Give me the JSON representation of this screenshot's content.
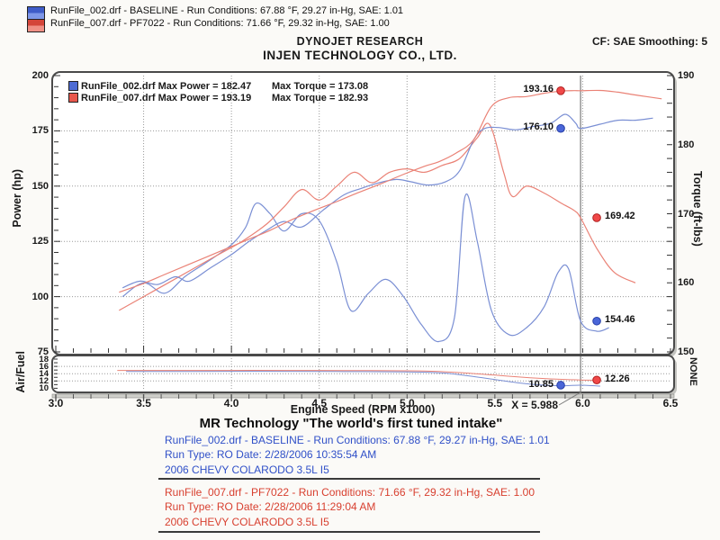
{
  "page_legend": {
    "runs": [
      {
        "swatch": "blue-swatch",
        "label": "RunFile_002.drf - BASELINE  -  Run Conditions: 67.88 °F, 29.27 in-Hg, SAE: 1.01"
      },
      {
        "swatch": "red-swatch",
        "label": "RunFile_007.drf - PF7022  -  Run Conditions: 71.66 °F, 29.32 in-Hg, SAE: 1.00"
      }
    ]
  },
  "header": {
    "brand": "DYNOJET RESEARCH",
    "company": "INJEN TECHNOLOGY CO., LTD.",
    "cf": "CF: SAE  Smoothing: 5"
  },
  "chart_data": {
    "type": "line",
    "xlabel": "Engine Speed (RPM x1000)",
    "x_range": [
      3.0,
      6.5
    ],
    "x_ticks": [
      "3.0",
      "3.5",
      "4.0",
      "4.5",
      "5.0",
      "5.5",
      "6.0",
      "6.5"
    ],
    "cursor": {
      "x": 5.988,
      "label": "X = 5.988"
    },
    "colors": {
      "blue_line": "#7a8fd4",
      "red_line": "#ea8276",
      "blue_dot": "#4a66d8",
      "red_dot": "#f04848",
      "grid": "#9a9a9a"
    },
    "main_chart": {
      "left_axis": {
        "label": "Power (hp)",
        "range": [
          75,
          200
        ],
        "ticks": [
          200,
          175,
          150,
          125,
          100,
          75
        ],
        "grid_at": [
          175,
          150,
          125,
          100
        ]
      },
      "right_axis": {
        "label": "Torque (ft-lbs)",
        "range": [
          150,
          190
        ],
        "ticks": [
          190,
          180,
          170,
          160,
          150
        ]
      },
      "legend": [
        {
          "swatch": "blue",
          "left": "RunFile_002.drf Max Power = 182.47",
          "right": "Max Torque = 173.08"
        },
        {
          "swatch": "red",
          "left": "RunFile_007.drf Max Power = 193.19",
          "right": "Max Torque = 182.93"
        }
      ],
      "series": [
        {
          "name": "baseline-torque",
          "run": "RunFile_002.drf",
          "axis": "torque",
          "color": "blue",
          "points": [
            [
              3.38,
              158
            ],
            [
              3.5,
              160
            ],
            [
              3.62,
              158.5
            ],
            [
              3.74,
              161
            ],
            [
              3.86,
              163
            ],
            [
              4.0,
              165.5
            ],
            [
              4.08,
              168
            ],
            [
              4.14,
              171.5
            ],
            [
              4.22,
              170
            ],
            [
              4.3,
              167.5
            ],
            [
              4.4,
              170
            ],
            [
              4.5,
              169
            ],
            [
              4.6,
              163
            ],
            [
              4.68,
              156
            ],
            [
              4.78,
              158.5
            ],
            [
              4.88,
              160.5
            ],
            [
              4.98,
              158
            ],
            [
              5.08,
              154
            ],
            [
              5.18,
              151.5
            ],
            [
              5.27,
              155
            ],
            [
              5.33,
              172.5
            ],
            [
              5.4,
              166
            ],
            [
              5.48,
              156
            ],
            [
              5.58,
              152.5
            ],
            [
              5.68,
              153.5
            ],
            [
              5.78,
              156.5
            ],
            [
              5.86,
              161.5
            ],
            [
              5.92,
              162
            ],
            [
              5.988,
              154.46
            ],
            [
              6.08,
              153
            ],
            [
              6.15,
              153.5
            ]
          ]
        },
        {
          "name": "pf7022-torque",
          "run": "RunFile_007.drf",
          "axis": "torque",
          "color": "red",
          "points": [
            [
              3.36,
              156
            ],
            [
              3.5,
              158
            ],
            [
              3.64,
              160
            ],
            [
              3.78,
              162
            ],
            [
              3.92,
              164
            ],
            [
              4.06,
              166
            ],
            [
              4.2,
              168.5
            ],
            [
              4.3,
              171
            ],
            [
              4.4,
              173.5
            ],
            [
              4.5,
              172
            ],
            [
              4.6,
              174
            ],
            [
              4.7,
              176
            ],
            [
              4.8,
              174.5
            ],
            [
              4.9,
              176
            ],
            [
              5.0,
              176.5
            ],
            [
              5.1,
              176
            ],
            [
              5.2,
              177
            ],
            [
              5.3,
              178
            ],
            [
              5.4,
              181
            ],
            [
              5.47,
              182.9
            ],
            [
              5.55,
              176
            ],
            [
              5.6,
              172.5
            ],
            [
              5.68,
              174
            ],
            [
              5.78,
              173
            ],
            [
              5.88,
              171.5
            ],
            [
              5.95,
              170.5
            ],
            [
              5.988,
              169.42
            ],
            [
              6.08,
              165
            ],
            [
              6.18,
              161.5
            ],
            [
              6.3,
              160
            ]
          ]
        },
        {
          "name": "baseline-power",
          "run": "RunFile_002.drf",
          "axis": "power",
          "color": "blue",
          "points": [
            [
              3.38,
              104
            ],
            [
              3.48,
              107
            ],
            [
              3.58,
              105.5
            ],
            [
              3.68,
              109
            ],
            [
              3.76,
              107
            ],
            [
              3.88,
              113
            ],
            [
              4.0,
              119
            ],
            [
              4.1,
              125
            ],
            [
              4.2,
              130
            ],
            [
              4.3,
              134
            ],
            [
              4.4,
              131.5
            ],
            [
              4.52,
              139
            ],
            [
              4.64,
              146
            ],
            [
              4.74,
              149
            ],
            [
              4.84,
              151.5
            ],
            [
              4.94,
              153
            ],
            [
              5.02,
              152
            ],
            [
              5.12,
              150.5
            ],
            [
              5.22,
              152
            ],
            [
              5.3,
              157
            ],
            [
              5.38,
              171
            ],
            [
              5.44,
              176
            ],
            [
              5.52,
              176.5
            ],
            [
              5.62,
              175.5
            ],
            [
              5.72,
              177
            ],
            [
              5.82,
              178.5
            ],
            [
              5.9,
              182.5
            ],
            [
              5.96,
              178.5
            ],
            [
              5.988,
              176.1
            ],
            [
              6.1,
              178
            ],
            [
              6.2,
              179.8
            ],
            [
              6.3,
              179.8
            ],
            [
              6.4,
              180.8
            ]
          ]
        },
        {
          "name": "pf7022-power",
          "run": "RunFile_007.drf",
          "axis": "power",
          "color": "red",
          "points": [
            [
              3.36,
              102
            ],
            [
              3.5,
              106
            ],
            [
              3.62,
              110
            ],
            [
              3.74,
              114
            ],
            [
              3.86,
              118
            ],
            [
              3.98,
              122
            ],
            [
              4.1,
              126
            ],
            [
              4.22,
              130
            ],
            [
              4.35,
              135
            ],
            [
              4.47,
              139
            ],
            [
              4.6,
              143
            ],
            [
              4.72,
              147
            ],
            [
              4.85,
              151
            ],
            [
              4.97,
              155
            ],
            [
              5.1,
              159
            ],
            [
              5.18,
              161
            ],
            [
              5.28,
              165
            ],
            [
              5.38,
              171
            ],
            [
              5.48,
              186
            ],
            [
              5.58,
              190
            ],
            [
              5.68,
              190.5
            ],
            [
              5.78,
              192
            ],
            [
              5.88,
              193
            ],
            [
              5.95,
              193.2
            ],
            [
              5.988,
              193.16
            ],
            [
              6.1,
              193.3
            ],
            [
              6.2,
              192.5
            ],
            [
              6.32,
              191
            ],
            [
              6.45,
              189.5
            ]
          ]
        }
      ],
      "markers": [
        {
          "label": "193.16",
          "rpm": 5.875,
          "value": 193.16,
          "axis": "power",
          "color": "red",
          "side": "left"
        },
        {
          "label": "176.10",
          "rpm": 5.875,
          "value": 176.1,
          "axis": "power",
          "color": "blue",
          "side": "left"
        },
        {
          "label": "169.42",
          "rpm": 6.08,
          "value": 169.42,
          "axis": "torque",
          "color": "red",
          "side": "right"
        },
        {
          "label": "154.46",
          "rpm": 6.08,
          "value": 154.46,
          "axis": "torque",
          "color": "blue",
          "side": "right"
        }
      ]
    },
    "af_chart": {
      "left_axis": {
        "label": "Air/Fuel",
        "range": [
          10,
          18
        ],
        "ticks": [
          18,
          16,
          14,
          12,
          10
        ],
        "grid_at": [
          16,
          14,
          12
        ]
      },
      "right_axis_label": "NONE",
      "series": [
        {
          "name": "baseline-airfuel",
          "run": "RunFile_002.drf",
          "color": "blue",
          "points": [
            [
              3.4,
              14.6
            ],
            [
              3.8,
              14.6
            ],
            [
              4.2,
              14.65
            ],
            [
              4.6,
              14.6
            ],
            [
              5.0,
              14.5
            ],
            [
              5.2,
              14.2
            ],
            [
              5.35,
              13.4
            ],
            [
              5.5,
              12.4
            ],
            [
              5.65,
              11.4
            ],
            [
              5.8,
              10.8
            ],
            [
              5.9,
              10.7
            ],
            [
              5.988,
              10.85
            ],
            [
              6.1,
              10.6
            ]
          ]
        },
        {
          "name": "pf7022-airfuel",
          "run": "RunFile_007.drf",
          "color": "red",
          "points": [
            [
              3.35,
              14.9
            ],
            [
              3.8,
              14.9
            ],
            [
              4.3,
              14.9
            ],
            [
              4.8,
              14.85
            ],
            [
              5.1,
              14.75
            ],
            [
              5.3,
              14.3
            ],
            [
              5.5,
              13.6
            ],
            [
              5.7,
              12.9
            ],
            [
              5.85,
              12.5
            ],
            [
              5.988,
              12.26
            ],
            [
              6.1,
              12.2
            ]
          ]
        }
      ],
      "markers": [
        {
          "label": "10.85",
          "rpm": 5.875,
          "value": 10.85,
          "color": "blue",
          "side": "left"
        },
        {
          "label": "12.26",
          "rpm": 6.08,
          "value": 12.26,
          "color": "red",
          "side": "right"
        }
      ]
    }
  },
  "footer": {
    "tagline": "MR Technology \"The world's first tuned intake\"",
    "runs": [
      {
        "line1": "RunFile_002.drf - BASELINE  -  Run Conditions: 67.88 °F, 29.27 in-Hg, SAE: 1.01",
        "line2": "Run Type: RO  Date: 2/28/2006 10:35:54 AM",
        "line3": "2006 CHEVY COLARODO 3.5L I5"
      },
      {
        "line1": "RunFile_007.drf - PF7022  -  Run Conditions: 71.66 °F, 29.32 in-Hg, SAE: 1.00",
        "line2": "Run Type: RO  Date: 2/28/2006 11:29:04 AM",
        "line3": "2006 CHEVY COLARODO 3.5L I5"
      }
    ]
  }
}
